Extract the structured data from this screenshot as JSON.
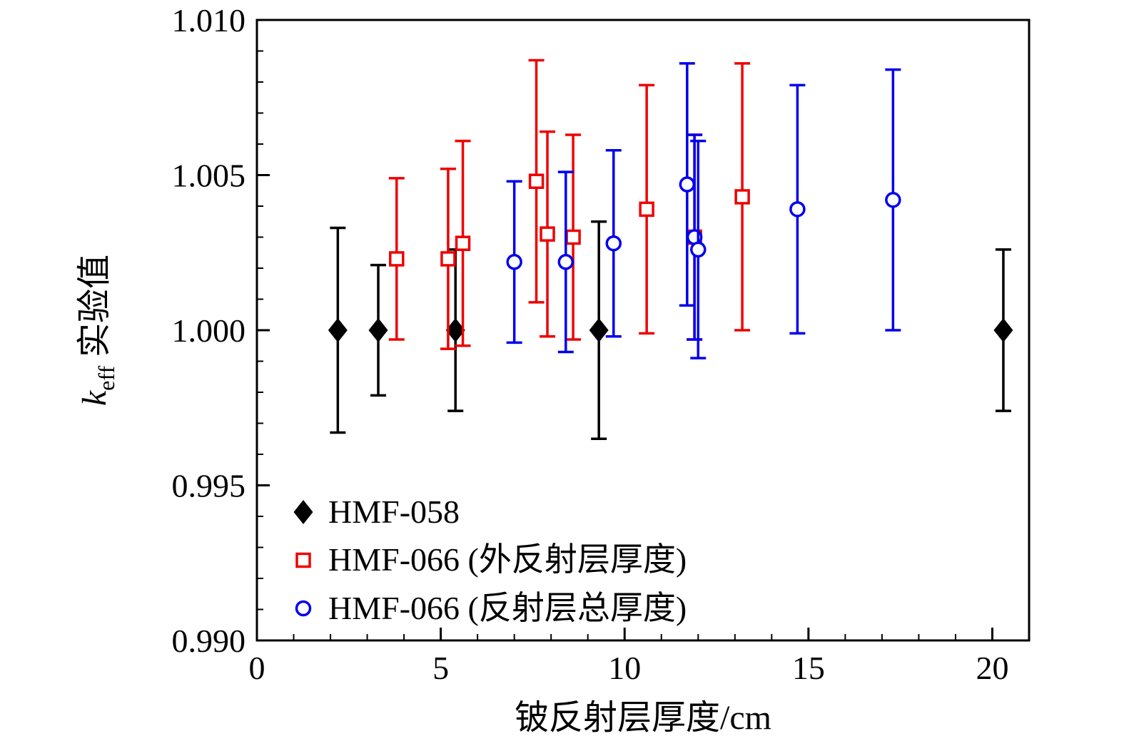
{
  "chart_data": {
    "type": "scatter",
    "title": "",
    "xlabel": "铍反射层厚度/cm",
    "ylabel": {
      "var": "k",
      "sub": "eff",
      "rest": " 实验值"
    },
    "xlim": [
      0,
      21
    ],
    "ylim": [
      0.99,
      1.01
    ],
    "xticks": [
      0,
      5,
      10,
      15,
      20
    ],
    "xtick_labels": [
      "0",
      "5",
      "10",
      "15",
      "20"
    ],
    "yticks": [
      0.99,
      0.995,
      1.0,
      1.005,
      1.01
    ],
    "ytick_labels": [
      "0.990",
      "0.995",
      "1.000",
      "1.005",
      "1.010"
    ],
    "x_minor_step": 1,
    "y_minor_step": 0.001,
    "grid": false,
    "legend_position": "inside-bottom-left",
    "frame_color": "#000000",
    "background_color": "#ffffff",
    "series": [
      {
        "name": "HMF-058",
        "marker": "filled-diamond",
        "color": "#000000",
        "points": [
          {
            "x": 2.2,
            "y": 1.0,
            "err": 0.0033
          },
          {
            "x": 3.3,
            "y": 1.0,
            "err": 0.0021
          },
          {
            "x": 5.4,
            "y": 1.0,
            "err": 0.0026
          },
          {
            "x": 9.3,
            "y": 1.0,
            "err": 0.0035
          },
          {
            "x": 20.3,
            "y": 1.0,
            "err": 0.0026
          }
        ]
      },
      {
        "name": "HMF-066 (外反射层厚度)",
        "marker": "open-square",
        "color": "#ee0000",
        "points": [
          {
            "x": 3.8,
            "y": 1.0023,
            "err": 0.0026
          },
          {
            "x": 5.2,
            "y": 1.0023,
            "err": 0.0029
          },
          {
            "x": 5.6,
            "y": 1.0028,
            "err": 0.0033
          },
          {
            "x": 7.6,
            "y": 1.0048,
            "err": 0.0039
          },
          {
            "x": 7.9,
            "y": 1.0031,
            "err": 0.0033
          },
          {
            "x": 8.6,
            "y": 1.003,
            "err": 0.0033
          },
          {
            "x": 10.6,
            "y": 1.0039,
            "err": 0.004
          },
          {
            "x": 11.9,
            "y": 1.003,
            "err": 0.0033
          },
          {
            "x": 13.2,
            "y": 1.0043,
            "err": 0.0043
          }
        ]
      },
      {
        "name": "HMF-066 (反射层总厚度)",
        "marker": "open-circle",
        "color": "#0000ee",
        "points": [
          {
            "x": 7.0,
            "y": 1.0022,
            "err": 0.0026
          },
          {
            "x": 8.4,
            "y": 1.0022,
            "err": 0.0029
          },
          {
            "x": 9.7,
            "y": 1.0028,
            "err": 0.003
          },
          {
            "x": 11.7,
            "y": 1.0047,
            "err": 0.0039
          },
          {
            "x": 11.9,
            "y": 1.003,
            "err": 0.0033
          },
          {
            "x": 12.0,
            "y": 1.0026,
            "err": 0.0035
          },
          {
            "x": 14.7,
            "y": 1.0039,
            "err": 0.004
          },
          {
            "x": 17.3,
            "y": 1.0042,
            "err": 0.0042
          }
        ]
      }
    ]
  }
}
